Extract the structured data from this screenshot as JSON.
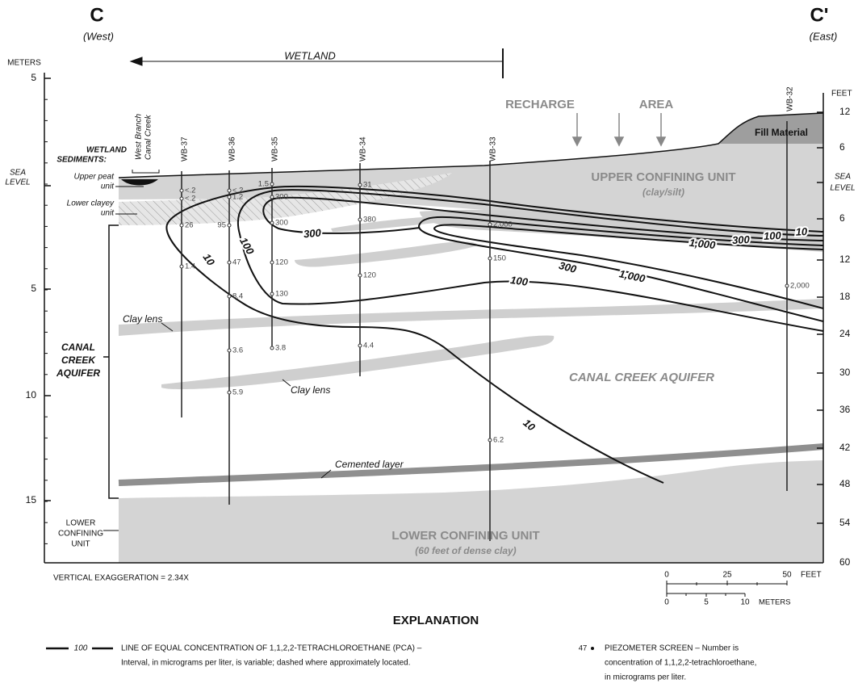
{
  "section": {
    "west_letter": "C",
    "west_label": "(West)",
    "east_letter": "C'",
    "east_label": "(East)",
    "wetland": "WETLAND"
  },
  "axes": {
    "left_title": "METERS",
    "left_ticks": [
      "5",
      "SEA",
      "LEVEL",
      "5",
      "10",
      "15"
    ],
    "right_title": "FEET",
    "right_ticks": [
      "12",
      "6",
      "SEA",
      "LEVEL",
      "6",
      "12",
      "18",
      "24",
      "30",
      "36",
      "42",
      "48",
      "54",
      "60"
    ]
  },
  "wells": [
    {
      "name": "WB-37",
      "readings": [
        "<.2",
        "<.2",
        "26",
        "1.4"
      ]
    },
    {
      "name": "WB-36",
      "readings": [
        "<.2",
        "1.2",
        "95",
        "47",
        "8.4",
        "3.6",
        "5.9"
      ]
    },
    {
      "name": "WB-35",
      "readings": [
        "1.5",
        "300",
        "300",
        "120",
        "130",
        "3.8"
      ]
    },
    {
      "name": "WB-34",
      "readings": [
        "31",
        "380",
        "120",
        "4.4"
      ]
    },
    {
      "name": "WB-33",
      "readings": [
        "2,000",
        "150",
        "6.2"
      ]
    },
    {
      "name": "WB-32",
      "readings": [
        "2,000"
      ]
    }
  ],
  "labels": {
    "stream": [
      "West Branch",
      "Canal Creek"
    ],
    "wetland_sediments": [
      "WETLAND",
      "SEDIMENTS:"
    ],
    "upper_peat": [
      "Upper peat",
      "unit"
    ],
    "lower_clayey": [
      "Lower clayey",
      "unit"
    ],
    "recharge": [
      "RECHARGE",
      "AREA"
    ],
    "fill": "Fill Material",
    "upper_confining": [
      "UPPER  CONFINING  UNIT",
      "(clay/silt)"
    ],
    "aquifer_left": [
      "CANAL",
      "CREEK",
      "AQUIFER"
    ],
    "aquifer_mid": "CANAL  CREEK  AQUIFER",
    "clay_lens_1": "Clay lens",
    "clay_lens_2": "Clay lens",
    "cemented": "Cemented layer",
    "lower_confining_left": [
      "LOWER",
      "CONFINING",
      "UNIT"
    ],
    "lower_confining": [
      "LOWER CONFINING UNIT",
      "(60 feet of dense clay)"
    ]
  },
  "contour_labels": [
    "10",
    "100",
    "300",
    "10",
    "100",
    "300",
    "1,000",
    "1,000",
    "300",
    "100",
    "10"
  ],
  "vertical_exaggeration": "VERTICAL EXAGGERATION = 2.34X",
  "scale": {
    "feet_ticks": [
      "0",
      "25",
      "50"
    ],
    "feet_unit": "FEET",
    "meter_ticks": [
      "0",
      "5",
      "10"
    ],
    "meter_unit": "METERS"
  },
  "explanation": {
    "title": "EXPLANATION",
    "contour_sample": "100",
    "contour_text": [
      "LINE OF EQUAL CONCENTRATION OF 1,1,2,2-TETRACHLOROETHANE (PCA) –",
      "Interval, in micrograms per liter, is variable; dashed where approximately located."
    ],
    "piezometer_sample": "47",
    "piezometer_text": [
      "PIEZOMETER SCREEN – Number is",
      "concentration of 1,1,2,2-tetrachloroethane,",
      "in micrograms per liter."
    ]
  }
}
